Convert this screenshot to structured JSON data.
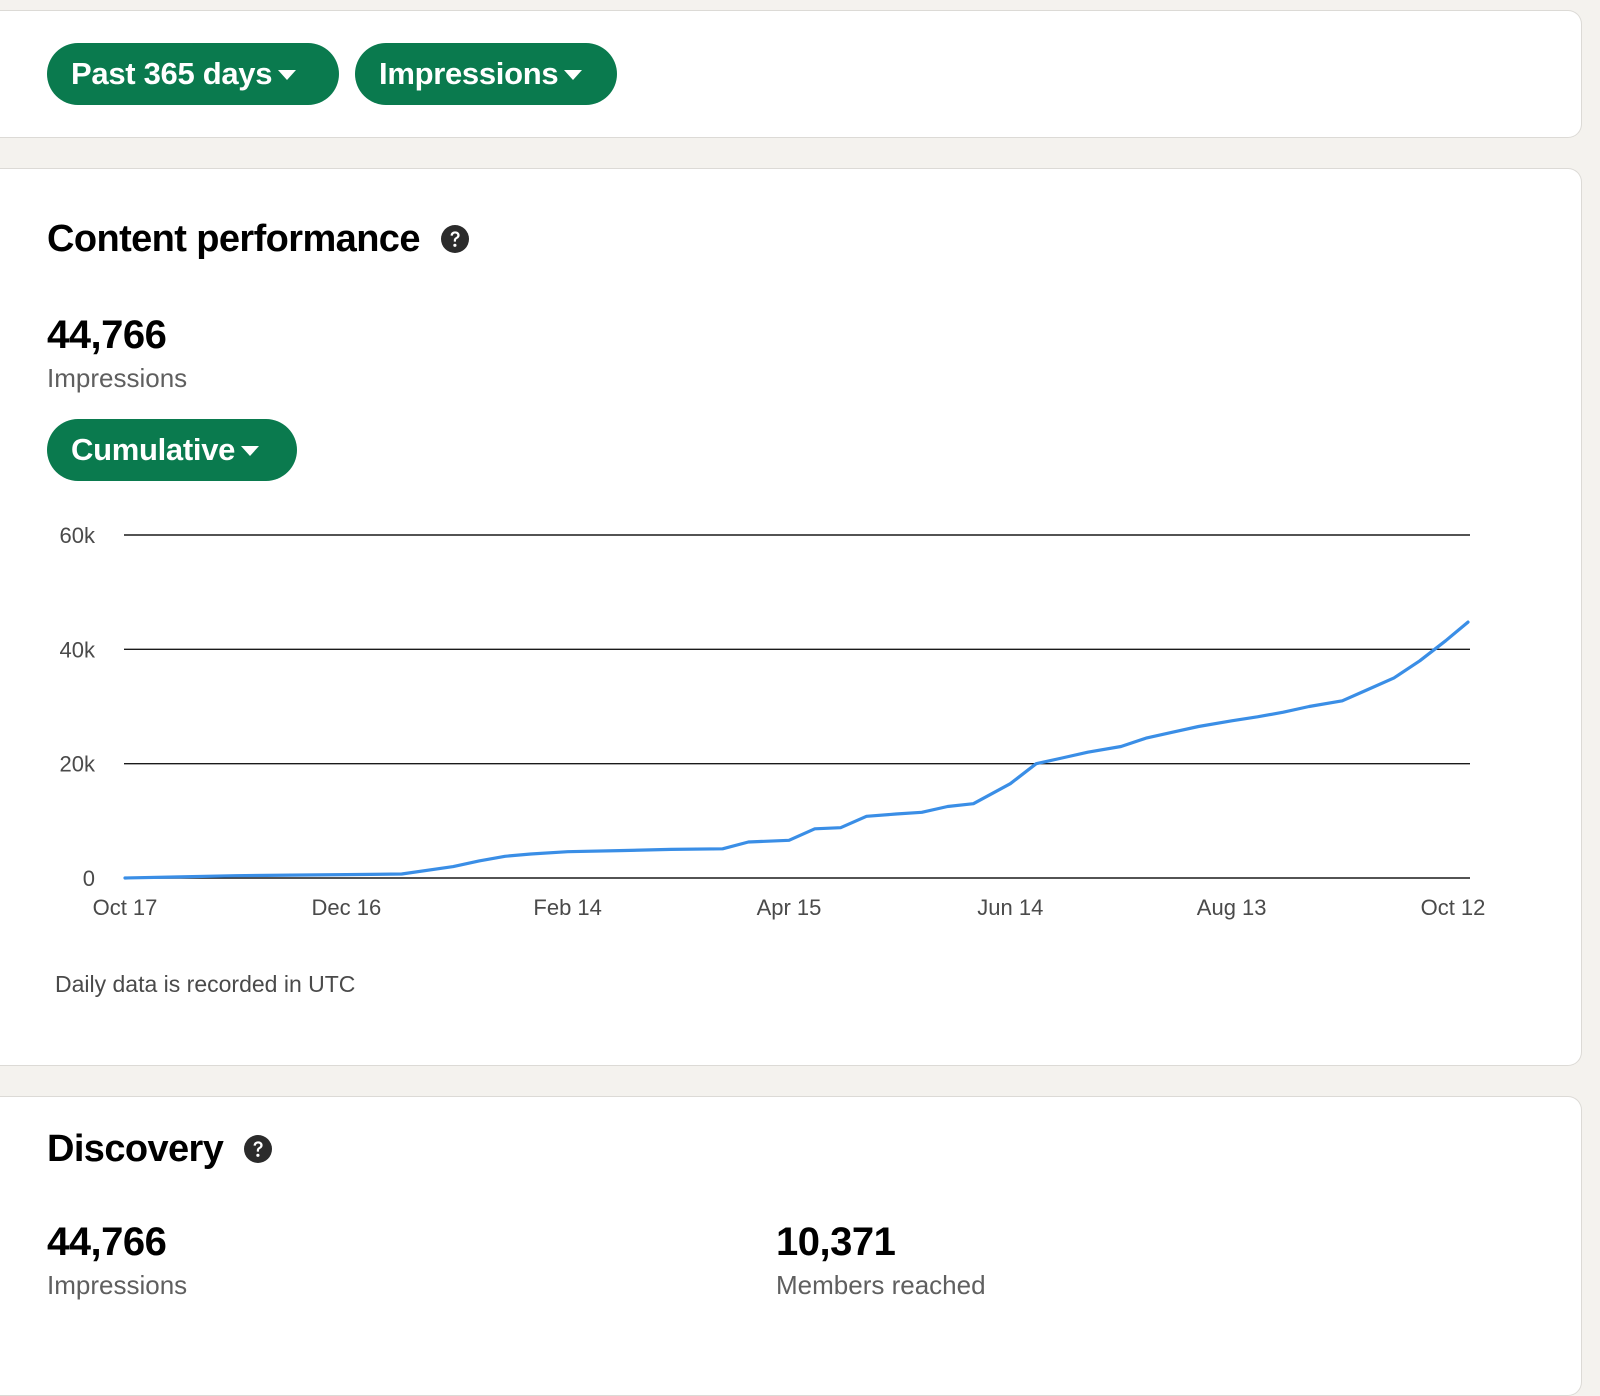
{
  "filters": {
    "date_range_label": "Past 365 days",
    "metric_label": "Impressions"
  },
  "content_performance": {
    "title": "Content performance",
    "total_value": "44,766",
    "total_label": "Impressions",
    "view_mode_label": "Cumulative",
    "footnote": "Daily data is recorded in UTC"
  },
  "discovery": {
    "title": "Discovery",
    "impressions_value": "44,766",
    "impressions_label": "Impressions",
    "members_value": "10,371",
    "members_label": "Members reached"
  },
  "colors": {
    "accent_green": "#0a7a4e",
    "line_blue": "#3a8ee6",
    "page_bg": "#f4f2ee",
    "card_bg": "#ffffff"
  },
  "icons": {
    "help": "question-circle-icon",
    "dropdown": "caret-down-icon"
  },
  "chart_data": {
    "type": "line",
    "y_ticks": [
      0,
      20000,
      40000,
      60000
    ],
    "y_tick_labels": [
      "0",
      "20k",
      "40k",
      "60k"
    ],
    "ylim": [
      0,
      60000
    ],
    "x_tick_labels": [
      "Oct 17",
      "Dec 16",
      "Feb 14",
      "Apr 15",
      "Jun 14",
      "Aug 13",
      "Oct 12"
    ],
    "grid": true,
    "series": [
      {
        "x": [
          "Oct 17",
          "Nov 1",
          "Nov 16",
          "Dec 1",
          "Dec 16",
          "Dec 31",
          "Jan 14",
          "Jan 21",
          "Jan 28",
          "Feb 4",
          "Feb 14",
          "Feb 28",
          "Mar 14",
          "Mar 28",
          "Apr 4",
          "Apr 15",
          "Apr 22",
          "Apr 29",
          "May 6",
          "May 14",
          "May 21",
          "May 28",
          "Jun 4",
          "Jun 14",
          "Jun 21",
          "Jun 28",
          "Jul 5",
          "Jul 14",
          "Jul 21",
          "Jul 28",
          "Aug 4",
          "Aug 13",
          "Aug 20",
          "Aug 27",
          "Sep 3",
          "Sep 12",
          "Sep 19",
          "Sep 26",
          "Oct 3",
          "Oct 10",
          "Oct 12"
        ],
        "values": [
          0,
          200,
          400,
          500,
          600,
          700,
          2000,
          3000,
          3800,
          4200,
          4600,
          4800,
          5000,
          5100,
          6300,
          6600,
          8600,
          8800,
          10800,
          11200,
          11500,
          12500,
          13000,
          16500,
          20000,
          21000,
          22000,
          23000,
          24500,
          25500,
          26500,
          27500,
          28200,
          29000,
          30000,
          31000,
          33000,
          35000,
          38000,
          41500,
          44766
        ]
      }
    ]
  }
}
